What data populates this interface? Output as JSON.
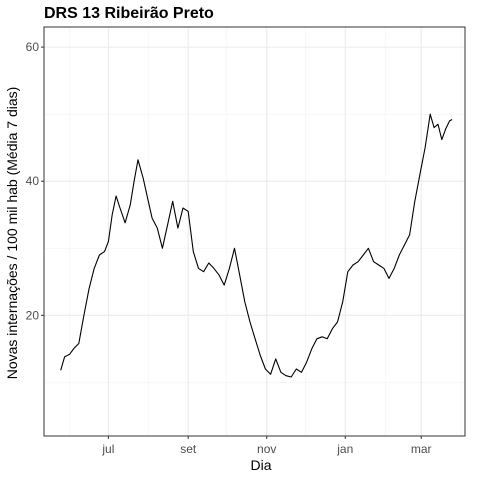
{
  "chart_data": {
    "type": "line",
    "title": "DRS 13 Ribeirão Preto",
    "xlabel": "Dia",
    "ylabel": "Novas internações / 100 mil hab (Média 7 dias)",
    "x_ticks": [
      {
        "label": "jul",
        "date": "2020-07-01"
      },
      {
        "label": "set",
        "date": "2020-09-01"
      },
      {
        "label": "nov",
        "date": "2020-11-01"
      },
      {
        "label": "jan",
        "date": "2021-01-01"
      },
      {
        "label": "mar",
        "date": "2021-03-01"
      }
    ],
    "x_minor_dates": [
      "2020-06-01",
      "2020-08-01",
      "2020-10-01",
      "2020-12-01",
      "2021-02-01",
      "2021-04-01"
    ],
    "xlim": [
      "2020-05-12",
      "2021-04-04"
    ],
    "ylim": [
      2,
      63
    ],
    "y_ticks": [
      20,
      40,
      60
    ],
    "y_minor": [
      10,
      30,
      50
    ],
    "grid": true,
    "series": [
      {
        "x": [
          "2020-05-25",
          "2020-05-28",
          "2020-06-01",
          "2020-06-04",
          "2020-06-08",
          "2020-06-12",
          "2020-06-16",
          "2020-06-20",
          "2020-06-24",
          "2020-06-28",
          "2020-07-01",
          "2020-07-04",
          "2020-07-07",
          "2020-07-10",
          "2020-07-14",
          "2020-07-18",
          "2020-07-21",
          "2020-07-24",
          "2020-07-28",
          "2020-08-01",
          "2020-08-04",
          "2020-08-08",
          "2020-08-12",
          "2020-08-16",
          "2020-08-20",
          "2020-08-24",
          "2020-08-28",
          "2020-09-01",
          "2020-09-05",
          "2020-09-09",
          "2020-09-13",
          "2020-09-17",
          "2020-09-21",
          "2020-09-25",
          "2020-09-29",
          "2020-10-03",
          "2020-10-07",
          "2020-10-11",
          "2020-10-15",
          "2020-10-19",
          "2020-10-23",
          "2020-10-27",
          "2020-10-31",
          "2020-11-04",
          "2020-11-08",
          "2020-11-12",
          "2020-11-16",
          "2020-11-20",
          "2020-11-24",
          "2020-11-28",
          "2020-12-02",
          "2020-12-06",
          "2020-12-10",
          "2020-12-14",
          "2020-12-18",
          "2020-12-22",
          "2020-12-26",
          "2020-12-30",
          "2021-01-03",
          "2021-01-07",
          "2021-01-11",
          "2021-01-15",
          "2021-01-19",
          "2021-01-23",
          "2021-01-27",
          "2021-01-31",
          "2021-02-04",
          "2021-02-08",
          "2021-02-12",
          "2021-02-16",
          "2021-02-20",
          "2021-02-24",
          "2021-02-28",
          "2021-03-04",
          "2021-03-08",
          "2021-03-11",
          "2021-03-14",
          "2021-03-17",
          "2021-03-20",
          "2021-03-23",
          "2021-03-25"
        ],
        "y": [
          11.8,
          13.8,
          14.2,
          15.0,
          15.8,
          20.0,
          24.0,
          27.0,
          29.0,
          29.5,
          31.0,
          35.0,
          37.8,
          36.0,
          33.8,
          36.5,
          40.0,
          43.2,
          40.5,
          37.0,
          34.5,
          33.0,
          30.0,
          33.5,
          37.0,
          33.0,
          36.0,
          35.5,
          29.5,
          27.0,
          26.5,
          27.8,
          27.0,
          26.0,
          24.5,
          27.0,
          30.0,
          26.0,
          22.0,
          19.0,
          16.5,
          14.0,
          12.0,
          11.2,
          13.5,
          11.5,
          11.0,
          10.8,
          12.0,
          11.5,
          13.0,
          15.0,
          16.5,
          16.8,
          16.5,
          18.0,
          19.0,
          22.0,
          26.5,
          27.5,
          28.0,
          29.0,
          30.0,
          28.0,
          27.5,
          27.0,
          25.5,
          27.0,
          29.0,
          30.5,
          32.0,
          37.0,
          41.0,
          45.0,
          50.0,
          48.0,
          48.5,
          46.2,
          47.8,
          49.0,
          49.2
        ]
      }
    ]
  }
}
